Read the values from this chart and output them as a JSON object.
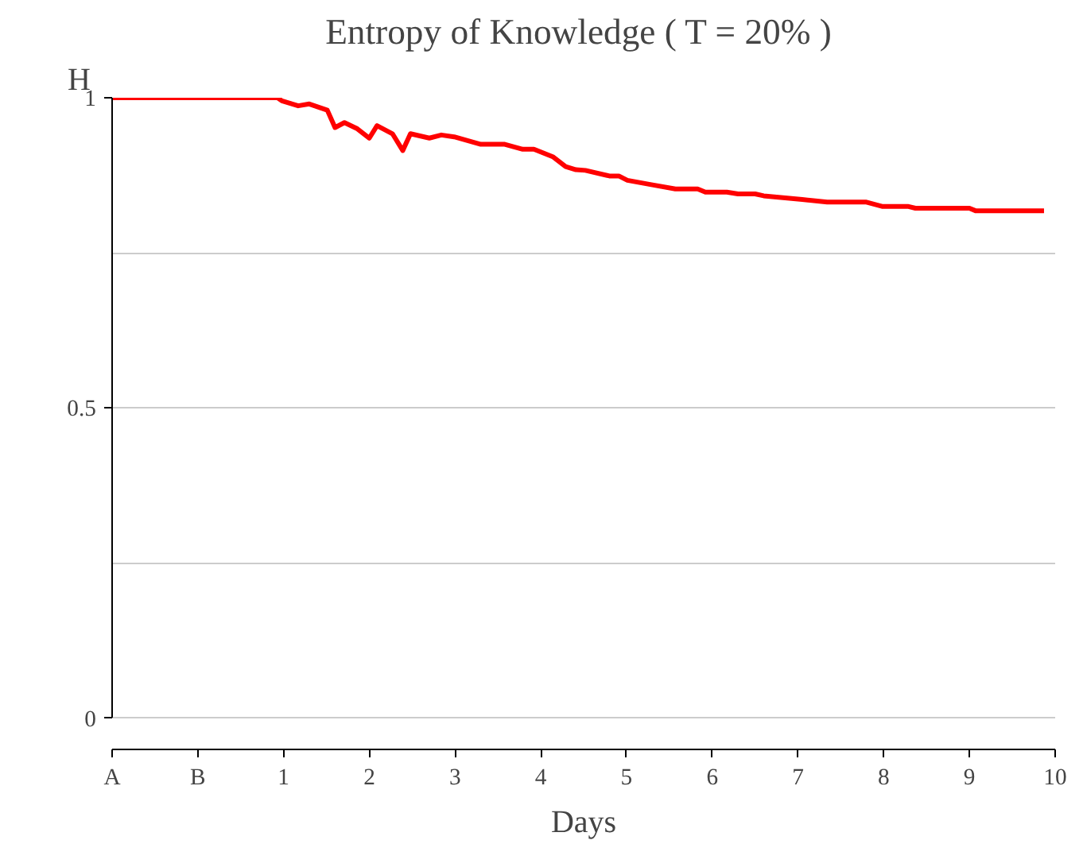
{
  "chart_data": {
    "type": "line",
    "title": "Entropy of Knowledge  ( T = 20% )",
    "xlabel": "Days",
    "ylabel": "H",
    "x": [
      -1,
      0.93,
      0.98,
      1.17,
      1.3,
      1.51,
      1.6,
      1.71,
      1.86,
      2.0,
      2.09,
      2.27,
      2.39,
      2.48,
      2.7,
      2.84,
      2.99,
      3.3,
      3.58,
      3.79,
      3.92,
      4.14,
      4.29,
      4.41,
      4.52,
      4.8,
      4.91,
      5.01,
      5.29,
      5.57,
      5.83,
      5.92,
      6.17,
      6.3,
      6.5,
      6.6,
      7.05,
      7.34,
      7.79,
      7.98,
      8.28,
      8.37,
      9.0,
      9.07,
      9.87
    ],
    "series": [
      {
        "color": "#ff0000",
        "values": [
          1.0,
          1.0,
          0.995,
          0.987,
          0.99,
          0.98,
          0.952,
          0.96,
          0.95,
          0.935,
          0.955,
          0.942,
          0.915,
          0.942,
          0.935,
          0.94,
          0.937,
          0.925,
          0.925,
          0.917,
          0.917,
          0.905,
          0.889,
          0.884,
          0.883,
          0.874,
          0.874,
          0.867,
          0.86,
          0.853,
          0.853,
          0.848,
          0.848,
          0.845,
          0.845,
          0.842,
          0.836,
          0.832,
          0.832,
          0.825,
          0.825,
          0.822,
          0.822,
          0.818,
          0.818
        ]
      }
    ],
    "xlim": [
      -1,
      10
    ],
    "ylim": [
      -0.05,
      1
    ],
    "xticks": [
      {
        "value": -1,
        "label": "A"
      },
      {
        "value": 0,
        "label": "B"
      },
      1,
      2,
      3,
      4,
      5,
      6,
      7,
      8,
      9,
      10
    ],
    "yticks": [
      0,
      {
        "value": 0.25,
        "label": null
      },
      0.5,
      {
        "value": 0.75,
        "label": null
      },
      1
    ],
    "grid": "y",
    "line_style": "solid"
  }
}
